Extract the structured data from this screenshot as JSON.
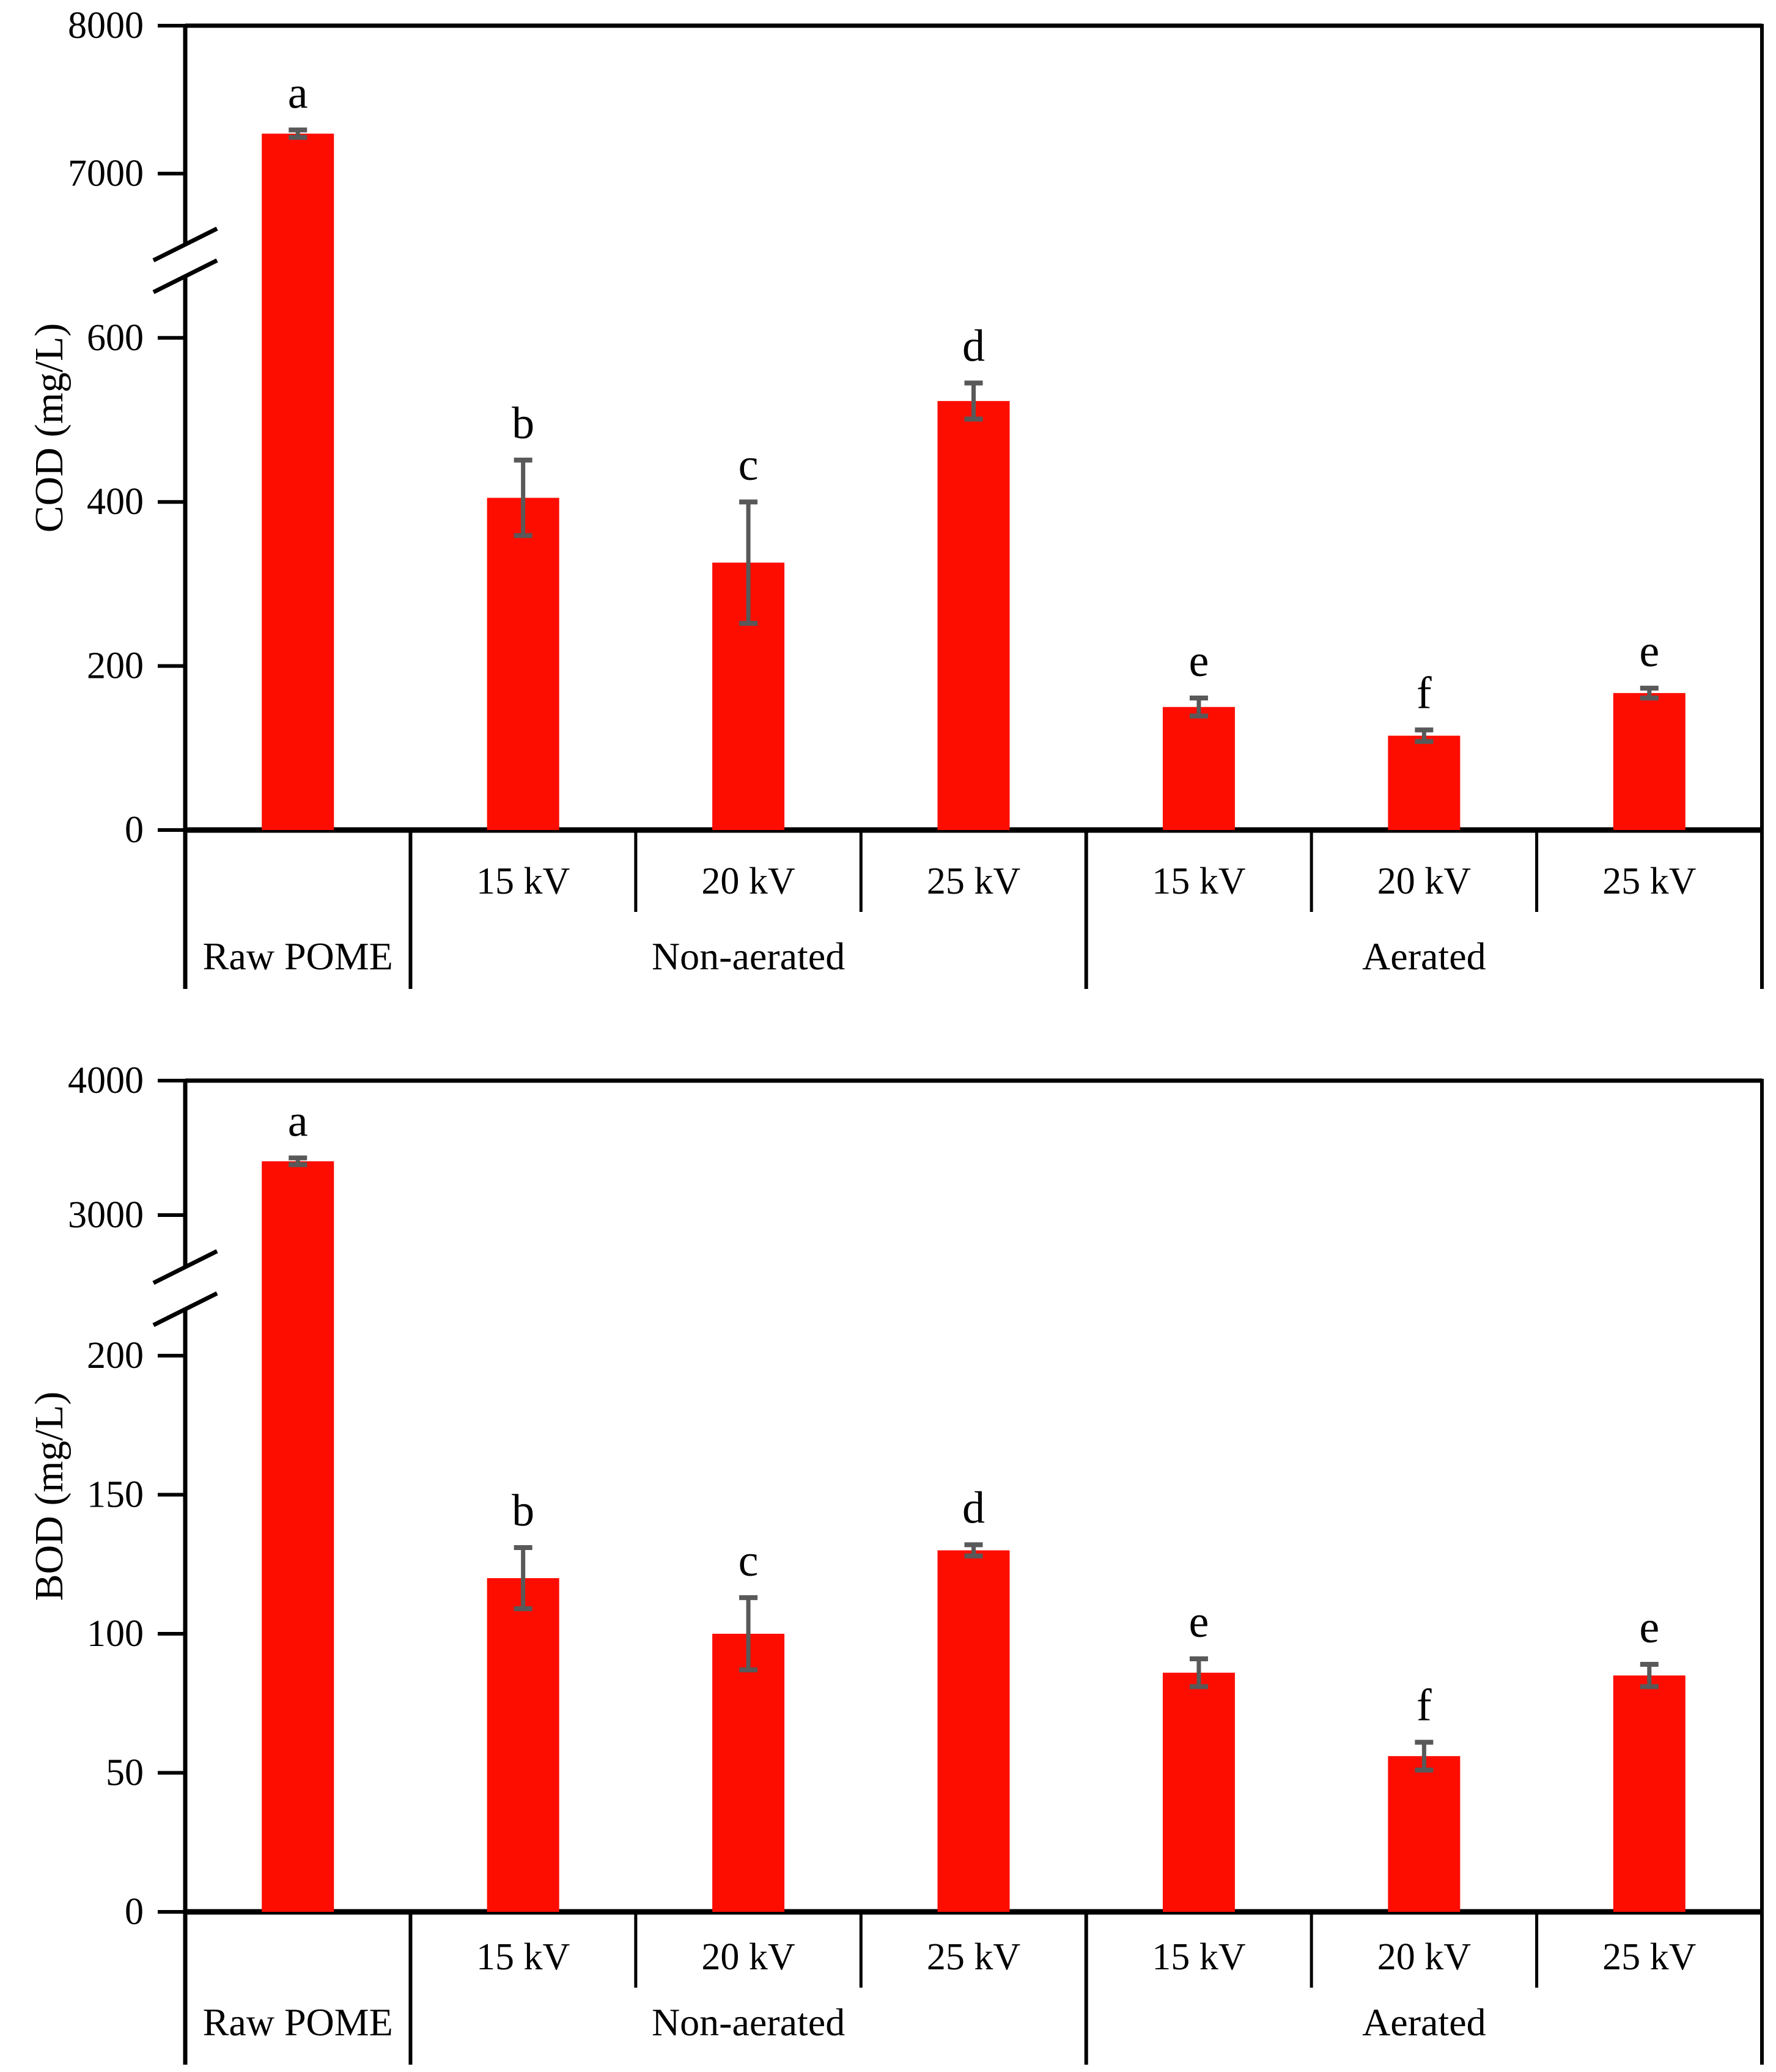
{
  "figure": {
    "description": "Two-panel bar chart of COD and BOD of POME under plasma treatment",
    "background_color": "#ffffff",
    "bar_color": "#fc0d00",
    "error_bar_color": "#595959",
    "axis_color": "#000000"
  },
  "chart_data": [
    {
      "type": "bar",
      "title": "",
      "ylabel": "COD (mg/L)",
      "xlabel": "",
      "grid": false,
      "legend": "none",
      "axis_break": true,
      "upper_axis_range": [
        6500,
        8000
      ],
      "lower_axis_range": [
        0,
        660
      ],
      "upper_ticks": [
        {
          "label": "8000",
          "value": 8000
        },
        {
          "label": "7000",
          "value": 7000
        }
      ],
      "lower_ticks": [
        {
          "label": "600",
          "value": 600
        },
        {
          "label": "400",
          "value": 400
        },
        {
          "label": "200",
          "value": 200
        },
        {
          "label": "0",
          "value": 0
        }
      ],
      "categories": [
        "",
        "15 kV",
        "20 kV",
        "25 kV",
        "15 kV",
        "20 kV",
        "25 kV"
      ],
      "group_labels": [
        {
          "label": "Raw POME",
          "span_start": 0,
          "span_end": 0
        },
        {
          "label": "Non-aerated",
          "span_start": 1,
          "span_end": 3
        },
        {
          "label": "Aerated",
          "span_start": 4,
          "span_end": 6
        }
      ],
      "series": [
        {
          "name": "COD",
          "values": [
            7270,
            405,
            326,
            523,
            150,
            115,
            167
          ],
          "errors": [
            25,
            46,
            74,
            22,
            11,
            7,
            6
          ],
          "significance_letters": [
            "a",
            "b",
            "c",
            "d",
            "e",
            "f",
            "e"
          ]
        }
      ],
      "bar_color": "#fc0d00",
      "error_bar_color": "#595959"
    },
    {
      "type": "bar",
      "title": "",
      "ylabel": "BOD (mg/L)",
      "xlabel": "",
      "grid": false,
      "legend": "none",
      "axis_break": true,
      "upper_axis_range": [
        2700,
        4000
      ],
      "lower_axis_range": [
        0,
        215
      ],
      "upper_ticks": [
        {
          "label": "4000",
          "value": 4000
        },
        {
          "label": "3000",
          "value": 3000
        }
      ],
      "lower_ticks": [
        {
          "label": "200",
          "value": 200
        },
        {
          "label": "150",
          "value": 150
        },
        {
          "label": "100",
          "value": 100
        },
        {
          "label": "50",
          "value": 50
        },
        {
          "label": "0",
          "value": 0
        }
      ],
      "categories": [
        "",
        "15 kV",
        "20 kV",
        "25 kV",
        "15 kV",
        "20 kV",
        "25 kV"
      ],
      "group_labels": [
        {
          "label": "Raw POME",
          "span_start": 0,
          "span_end": 0
        },
        {
          "label": "Non-aerated",
          "span_start": 1,
          "span_end": 3
        },
        {
          "label": "Aerated",
          "span_start": 4,
          "span_end": 6
        }
      ],
      "series": [
        {
          "name": "BOD",
          "values": [
            3400,
            120,
            100,
            130,
            86,
            56,
            85
          ],
          "errors": [
            25,
            11,
            13,
            2,
            5,
            5,
            4
          ],
          "significance_letters": [
            "a",
            "b",
            "c",
            "d",
            "e",
            "f",
            "e"
          ]
        }
      ],
      "bar_color": "#fc0d00",
      "error_bar_color": "#595959"
    }
  ]
}
